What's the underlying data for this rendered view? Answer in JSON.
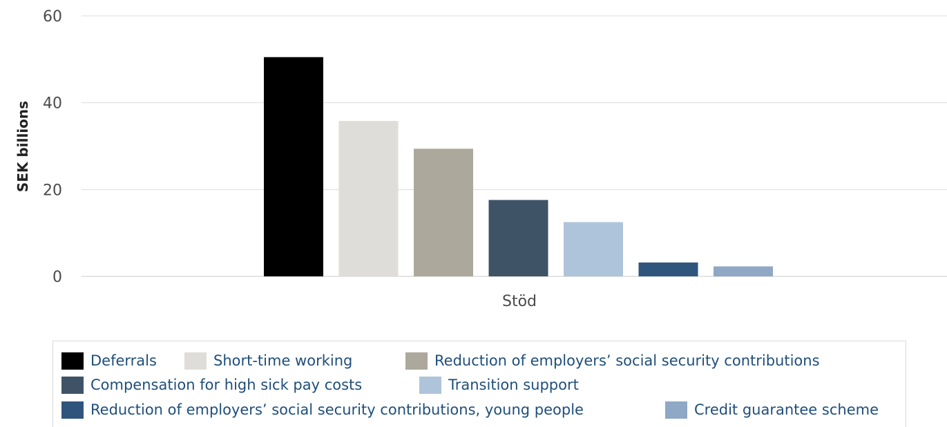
{
  "chart_data": {
    "type": "bar",
    "title": "",
    "xlabel": "",
    "ylabel": "SEK billions",
    "categories": [
      "Stöd"
    ],
    "ylim": [
      0,
      60
    ],
    "yticks": [
      0,
      20,
      40,
      60
    ],
    "grid": true,
    "legend_position": "bottom",
    "series": [
      {
        "name": "Deferrals",
        "values": [
          50.5
        ],
        "color": "#000000"
      },
      {
        "name": "Short-time working",
        "values": [
          35.8
        ],
        "color": "#deddd9"
      },
      {
        "name": "Reduction of employers’ social security contributions",
        "values": [
          29.4
        ],
        "color": "#aca89c"
      },
      {
        "name": "Compensation for high sick pay costs",
        "values": [
          17.6
        ],
        "color": "#3f5367"
      },
      {
        "name": "Transition support",
        "values": [
          12.5
        ],
        "color": "#aec4da"
      },
      {
        "name": "Reduction of employers’ social security contributions, young people",
        "values": [
          3.2
        ],
        "color": "#2f557d"
      },
      {
        "name": "Credit guarantee scheme",
        "values": [
          2.3
        ],
        "color": "#8ea8c5"
      }
    ]
  }
}
